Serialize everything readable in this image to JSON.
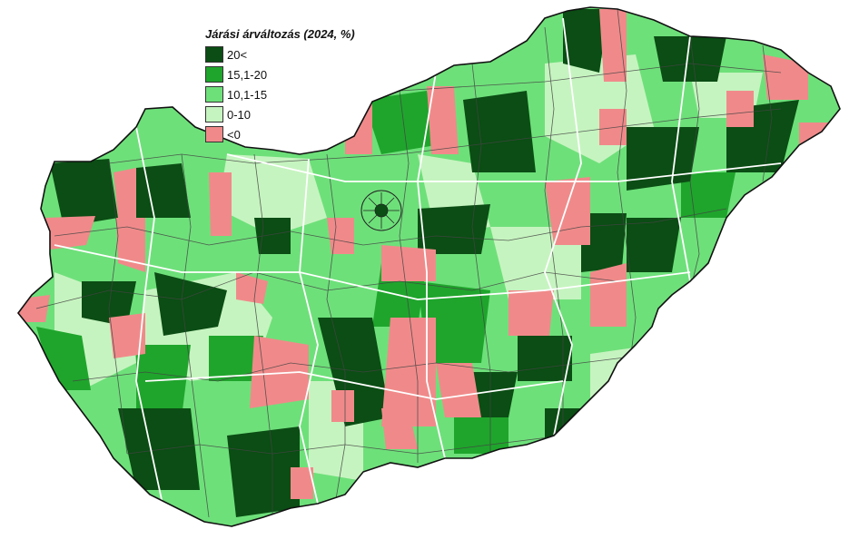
{
  "map": {
    "region": "Hungary",
    "legend": {
      "title": "Járási árváltozás (2024, %)",
      "items": [
        {
          "label": "20<",
          "color": "#0b4d14"
        },
        {
          "label": "15,1-20",
          "color": "#1fa52c"
        },
        {
          "label": "10,1-15",
          "color": "#6ee07a"
        },
        {
          "label": "0-10",
          "color": "#c6f4c0"
        },
        {
          "label": "<0",
          "color": "#f08a8a"
        }
      ]
    }
  }
}
